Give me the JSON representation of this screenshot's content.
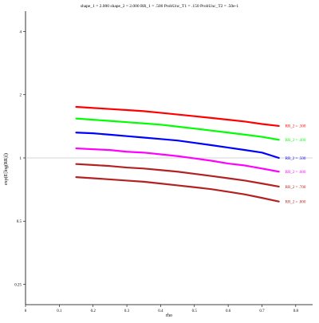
{
  "chart_data": {
    "type": "line",
    "title": "shape_1 = 2.000  shape_2 = 2.000  RR_1 = .500  ProbUnc_T1 = .150  ProbUnc_T2 = .50e-1",
    "xlabel": "rho",
    "ylabel": "exp(E[log(RR)])",
    "xlim": [
      0,
      0.85
    ],
    "ylim": [
      0.2,
      5
    ],
    "y_scale": "log",
    "x_ticks": [
      "0",
      "0.1",
      "0.2",
      "0.3",
      "0.4",
      "0.5",
      "0.6",
      "0.7",
      "0.8"
    ],
    "y_ticks": [
      "0.25",
      "0.5",
      "1",
      "2",
      "4"
    ],
    "reference_line": {
      "y": 1,
      "color": "#c8c8c8"
    },
    "legend": "inline labels at right end of each series",
    "x": [
      0.15,
      0.2,
      0.25,
      0.3,
      0.35,
      0.4,
      0.45,
      0.5,
      0.55,
      0.6,
      0.65,
      0.7,
      0.75
    ],
    "series": [
      {
        "name": "RR_2 = .300",
        "color": "#ff0000",
        "values": [
          1.75,
          1.73,
          1.71,
          1.69,
          1.67,
          1.64,
          1.61,
          1.58,
          1.55,
          1.52,
          1.49,
          1.45,
          1.42
        ]
      },
      {
        "name": "RR_2 = .400",
        "color": "#00ff00",
        "values": [
          1.54,
          1.52,
          1.5,
          1.48,
          1.46,
          1.44,
          1.41,
          1.38,
          1.35,
          1.32,
          1.29,
          1.26,
          1.22
        ]
      },
      {
        "name": "RR_2 = .500",
        "color": "#0000ff",
        "values": [
          1.32,
          1.31,
          1.29,
          1.27,
          1.25,
          1.23,
          1.21,
          1.18,
          1.15,
          1.12,
          1.09,
          1.06,
          1.0
        ]
      },
      {
        "name": "RR_2 = .600",
        "color": "#ff00ff",
        "values": [
          1.11,
          1.1,
          1.09,
          1.07,
          1.06,
          1.04,
          1.02,
          0.995,
          0.97,
          0.94,
          0.92,
          0.89,
          0.86
        ]
      },
      {
        "name": "RR_2 = .700",
        "color": "#b22222",
        "values": [
          0.935,
          0.925,
          0.915,
          0.9,
          0.89,
          0.875,
          0.86,
          0.84,
          0.82,
          0.8,
          0.78,
          0.755,
          0.73
        ]
      },
      {
        "name": "RR_2 = .800",
        "color": "#b22222",
        "values": [
          0.81,
          0.8,
          0.79,
          0.78,
          0.77,
          0.755,
          0.74,
          0.725,
          0.71,
          0.69,
          0.67,
          0.645,
          0.62
        ]
      }
    ]
  }
}
